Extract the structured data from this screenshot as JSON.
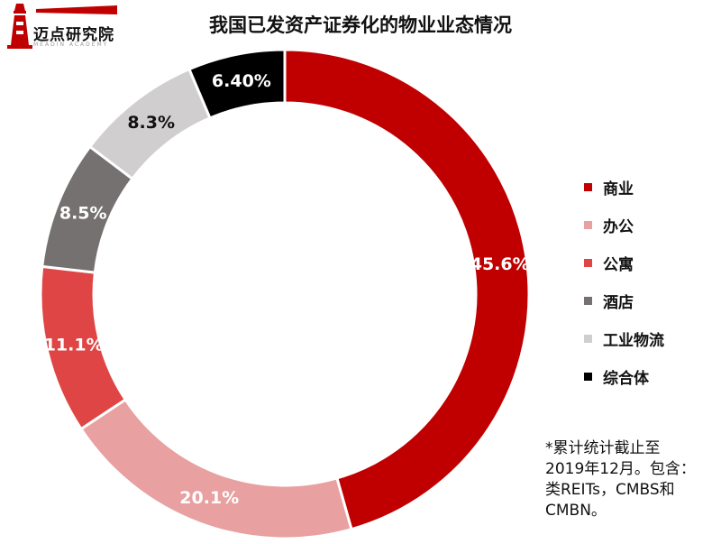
{
  "logo": {
    "name": "迈点研究院",
    "subtitle": "MEADIN ACADEMY"
  },
  "colors": {
    "商业": "#c00000",
    "办公": "#e8a0a0",
    "公寓": "#e04545",
    "酒店": "#767171",
    "工业物流": "#d0cece",
    "综合体": "#000000"
  },
  "chart_data": {
    "type": "pie",
    "donut": true,
    "title": "我国已发资产证券化的物业业态情况",
    "categories": [
      "商业",
      "办公",
      "公寓",
      "酒店",
      "工业物流",
      "综合体"
    ],
    "values": [
      45.6,
      20.1,
      11.1,
      8.5,
      8.3,
      6.4
    ],
    "labels": [
      "45.6%",
      "20.1%",
      "11.1%",
      "8.5%",
      "8.3%",
      "6.40%"
    ],
    "start": "12 o'clock, clockwise",
    "legend_position": "right"
  },
  "footnote": [
    "*累计统计截止至",
    "2019年12月。包含：",
    "类REITs，CMBS和",
    "CMBN。"
  ]
}
